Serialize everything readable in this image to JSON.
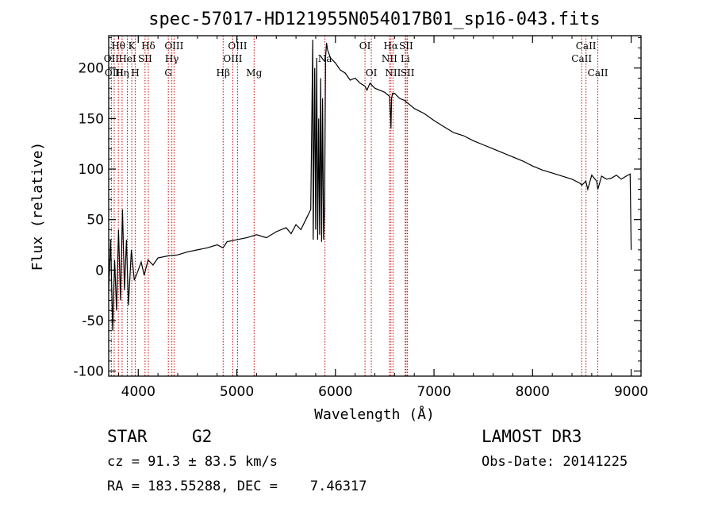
{
  "chart_data": {
    "type": "line",
    "title": "spec-57017-HD121955N054017B01_sp16-043.fits",
    "xlabel": "Wavelength (Å)",
    "ylabel": "Flux (relative)",
    "xlim": [
      3700,
      9100
    ],
    "ylim": [
      -105,
      232
    ],
    "x_ticks": [
      4000,
      5000,
      6000,
      7000,
      8000,
      9000
    ],
    "y_ticks": [
      -100,
      -50,
      0,
      50,
      100,
      150,
      200
    ],
    "grid": false,
    "series": [
      {
        "name": "spectrum",
        "x": [
          3700,
          3720,
          3740,
          3760,
          3780,
          3800,
          3820,
          3840,
          3860,
          3880,
          3900,
          3930,
          3960,
          4000,
          4030,
          4060,
          4100,
          4150,
          4200,
          4300,
          4400,
          4500,
          4600,
          4700,
          4800,
          4860,
          4900,
          5000,
          5100,
          5200,
          5300,
          5400,
          5500,
          5550,
          5600,
          5650,
          5700,
          5750,
          5770,
          5775,
          5790,
          5800,
          5810,
          5820,
          5830,
          5840,
          5850,
          5860,
          5870,
          5880,
          5890,
          5900,
          5910,
          5920,
          5950,
          6000,
          6050,
          6100,
          6150,
          6200,
          6250,
          6300,
          6320,
          6350,
          6400,
          6450,
          6500,
          6550,
          6560,
          6563,
          6570,
          6580,
          6600,
          6650,
          6700,
          6800,
          6900,
          7000,
          7100,
          7200,
          7300,
          7400,
          7500,
          7600,
          7700,
          7800,
          7900,
          8000,
          8100,
          8200,
          8300,
          8400,
          8480,
          8500,
          8540,
          8560,
          8600,
          8650,
          8662,
          8700,
          8750,
          8800,
          8850,
          8900,
          8950,
          8990,
          9000
        ],
        "y": [
          -20,
          30,
          -60,
          10,
          -40,
          40,
          -30,
          60,
          -20,
          30,
          -35,
          20,
          -10,
          0,
          8,
          -5,
          10,
          5,
          12,
          14,
          15,
          18,
          20,
          22,
          25,
          22,
          28,
          30,
          32,
          35,
          32,
          38,
          42,
          36,
          45,
          40,
          50,
          60,
          228,
          30,
          200,
          40,
          210,
          30,
          150,
          35,
          190,
          28,
          170,
          30,
          60,
          210,
          225,
          218,
          210,
          205,
          198,
          195,
          188,
          190,
          185,
          182,
          178,
          185,
          180,
          178,
          176,
          172,
          150,
          140,
          170,
          175,
          175,
          170,
          168,
          160,
          155,
          148,
          142,
          136,
          133,
          128,
          124,
          120,
          116,
          112,
          108,
          103,
          99,
          96,
          93,
          90,
          86,
          84,
          88,
          80,
          94,
          88,
          80,
          93,
          90,
          91,
          94,
          90,
          93,
          95,
          20
        ]
      }
    ],
    "spectral_lines": [
      {
        "label": "Hθ",
        "wavelength": 3798,
        "row": 1
      },
      {
        "label": "OII",
        "wavelength": 3727,
        "row": 2
      },
      {
        "label": "OIII",
        "wavelength": 3756,
        "row": 3
      },
      {
        "label": "K",
        "wavelength": 3934,
        "row": 1
      },
      {
        "label": "HeI",
        "wavelength": 3889,
        "row": 2
      },
      {
        "label": "Hη",
        "wavelength": 3836,
        "row": 3
      },
      {
        "label": "SII",
        "wavelength": 4069,
        "row": 2
      },
      {
        "label": "H",
        "wavelength": 3969,
        "row": 3
      },
      {
        "label": "Hδ",
        "wavelength": 4102,
        "row": 1
      },
      {
        "label": "OIII",
        "wavelength": 4363,
        "row": 1
      },
      {
        "label": "Hγ",
        "wavelength": 4341,
        "row": 2
      },
      {
        "label": "G",
        "wavelength": 4305,
        "row": 3
      },
      {
        "label": "Hβ",
        "wavelength": 4861,
        "row": 3
      },
      {
        "label": "OIII",
        "wavelength": 5007,
        "row": 1
      },
      {
        "label": "OIII",
        "wavelength": 4959,
        "row": 2
      },
      {
        "label": "Mg",
        "wavelength": 5175,
        "row": 3
      },
      {
        "label": "Na",
        "wavelength": 5894,
        "row": 2
      },
      {
        "label": "OI",
        "wavelength": 6300,
        "row": 1
      },
      {
        "label": "OI",
        "wavelength": 6364,
        "row": 3
      },
      {
        "label": "Hα",
        "wavelength": 6563,
        "row": 1
      },
      {
        "label": "NII",
        "wavelength": 6548,
        "row": 2
      },
      {
        "label": "NII",
        "wavelength": 6584,
        "row": 3
      },
      {
        "label": "SII",
        "wavelength": 6717,
        "row": 1
      },
      {
        "label": "Li",
        "wavelength": 6708,
        "row": 2
      },
      {
        "label": "SII",
        "wavelength": 6731,
        "row": 3
      },
      {
        "label": "CaII",
        "wavelength": 8542,
        "row": 1
      },
      {
        "label": "CaII",
        "wavelength": 8498,
        "row": 2
      },
      {
        "label": "CaII",
        "wavelength": 8662,
        "row": 3
      }
    ],
    "line_color": "#000000",
    "marker_color": "#cc0000"
  },
  "info": {
    "object_class": "STAR",
    "subclass": "G2",
    "survey": "LAMOST DR3",
    "cz": "cz = 91.3 ± 83.5 km/s",
    "obs_date": "Obs-Date: 20141225",
    "coords": "RA = 183.55288, DEC =    7.46317"
  }
}
